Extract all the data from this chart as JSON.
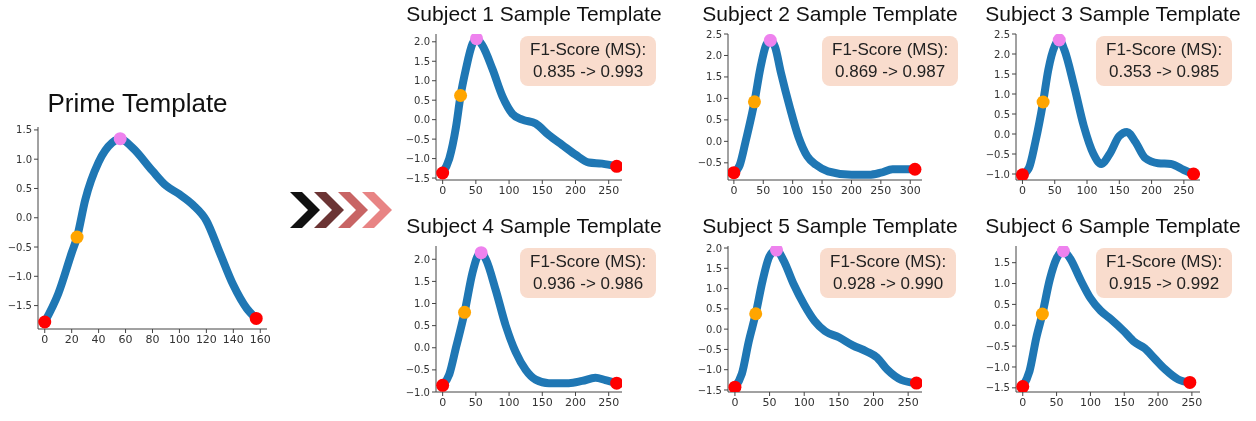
{
  "chart_data": [
    {
      "type": "line",
      "title": "Prime Template",
      "xlim": [
        -5,
        165
      ],
      "xticks": [
        0,
        20,
        40,
        60,
        80,
        100,
        120,
        140,
        160
      ],
      "ylim": [
        -1.9,
        1.55
      ],
      "yticks": [
        {
          "value": -1.5,
          "label": "−1.5"
        },
        {
          "value": -1,
          "label": "−1.0"
        },
        {
          "value": -0.5,
          "label": "−0.5"
        },
        {
          "value": 0,
          "label": "0.0"
        },
        {
          "value": 0.5,
          "label": "0.5"
        },
        {
          "value": 1,
          "label": "1.0"
        },
        {
          "value": 1.5,
          "label": "1.5"
        }
      ],
      "series": [
        {
          "type": "line",
          "color": "#1f77b4",
          "marker": "none",
          "x": [
            0,
            10,
            20,
            24,
            30,
            40,
            50,
            56,
            65,
            80,
            90,
            100,
            110,
            120,
            130,
            140,
            150,
            157
          ],
          "values": [
            -1.78,
            -1.3,
            -0.6,
            -0.33,
            0.3,
            0.95,
            1.28,
            1.35,
            1.2,
            0.8,
            0.55,
            0.4,
            0.22,
            -0.05,
            -0.6,
            -1.15,
            -1.55,
            -1.72
          ]
        },
        {
          "type": "scatter",
          "color": "#ff0000",
          "marker": "circle",
          "x": [
            0,
            157
          ],
          "values": [
            -1.78,
            -1.72
          ]
        },
        {
          "type": "scatter",
          "color": "#ffa500",
          "marker": "circle",
          "x": [
            24
          ],
          "values": [
            -0.33
          ]
        },
        {
          "type": "scatter",
          "color": "#ee82ee",
          "marker": "circle",
          "x": [
            56
          ],
          "values": [
            1.35
          ]
        }
      ]
    },
    {
      "type": "line",
      "title": "Subject 1 Sample Template",
      "annotations": [
        "F1-Score (MS):",
        "0.835 -> 0.993"
      ],
      "xlim": [
        -10,
        270
      ],
      "xticks": [
        0,
        50,
        100,
        150,
        200,
        250
      ],
      "ylim": [
        -1.55,
        2.2
      ],
      "yticks": [
        {
          "value": -1.5,
          "label": "−1.5"
        },
        {
          "value": -1,
          "label": "−1.0"
        },
        {
          "value": -0.5,
          "label": "−0.5"
        },
        {
          "value": 0,
          "label": "0.0"
        },
        {
          "value": 0.5,
          "label": "0.5"
        },
        {
          "value": 1,
          "label": "1.0"
        },
        {
          "value": 1.5,
          "label": "1.5"
        },
        {
          "value": 2,
          "label": "2.0"
        }
      ],
      "series": [
        {
          "type": "line",
          "color": "#1f77b4",
          "marker": "none",
          "x": [
            0,
            10,
            20,
            27,
            35,
            45,
            51,
            60,
            75,
            90,
            105,
            120,
            140,
            160,
            180,
            200,
            220,
            240,
            262
          ],
          "values": [
            -1.37,
            -1.0,
            -0.2,
            0.62,
            1.3,
            1.95,
            2.08,
            1.9,
            1.3,
            0.6,
            0.15,
            0.0,
            -0.1,
            -0.4,
            -0.65,
            -0.9,
            -1.1,
            -1.13,
            -1.2
          ]
        },
        {
          "type": "scatter",
          "color": "#ff0000",
          "marker": "circle",
          "x": [
            0,
            262
          ],
          "values": [
            -1.37,
            -1.2
          ]
        },
        {
          "type": "scatter",
          "color": "#ffa500",
          "marker": "circle",
          "x": [
            27
          ],
          "values": [
            0.62
          ]
        },
        {
          "type": "scatter",
          "color": "#ee82ee",
          "marker": "circle",
          "x": [
            51
          ],
          "values": [
            2.08
          ]
        }
      ]
    },
    {
      "type": "line",
      "title": "Subject 2 Sample Template",
      "annotations": [
        "F1-Score (MS):",
        "0.869 -> 0.987"
      ],
      "xlim": [
        -10,
        320
      ],
      "xticks": [
        0,
        50,
        100,
        150,
        200,
        250,
        300
      ],
      "ylim": [
        -0.9,
        2.5
      ],
      "yticks": [
        {
          "value": -0.5,
          "label": "−0.5"
        },
        {
          "value": 0,
          "label": "0.0"
        },
        {
          "value": 0.5,
          "label": "0.5"
        },
        {
          "value": 1,
          "label": "1.0"
        },
        {
          "value": 1.5,
          "label": "1.5"
        },
        {
          "value": 2,
          "label": "2.0"
        },
        {
          "value": 2.5,
          "label": "2.5"
        }
      ],
      "series": [
        {
          "type": "line",
          "color": "#1f77b4",
          "marker": "none",
          "x": [
            0,
            10,
            20,
            35,
            45,
            55,
            62,
            70,
            80,
            95,
            110,
            125,
            140,
            160,
            200,
            230,
            250,
            270,
            308
          ],
          "values": [
            -0.73,
            -0.55,
            0.0,
            0.92,
            1.7,
            2.25,
            2.35,
            2.2,
            1.6,
            0.8,
            0.1,
            -0.35,
            -0.55,
            -0.7,
            -0.78,
            -0.78,
            -0.73,
            -0.65,
            -0.65
          ]
        },
        {
          "type": "scatter",
          "color": "#ff0000",
          "marker": "circle",
          "x": [
            0,
            308
          ],
          "values": [
            -0.73,
            -0.65
          ]
        },
        {
          "type": "scatter",
          "color": "#ffa500",
          "marker": "circle",
          "x": [
            35
          ],
          "values": [
            0.92
          ]
        },
        {
          "type": "scatter",
          "color": "#ee82ee",
          "marker": "circle",
          "x": [
            62
          ],
          "values": [
            2.35
          ]
        }
      ]
    },
    {
      "type": "line",
      "title": "Subject 3 Sample Template",
      "annotations": [
        "F1-Score (MS):",
        "0.353 -> 0.985"
      ],
      "xlim": [
        -10,
        275
      ],
      "xticks": [
        0,
        50,
        100,
        150,
        200,
        250
      ],
      "ylim": [
        -1.15,
        2.5
      ],
      "yticks": [
        {
          "value": -1,
          "label": "−1.0"
        },
        {
          "value": -0.5,
          "label": "−0.5"
        },
        {
          "value": 0,
          "label": "0.0"
        },
        {
          "value": 0.5,
          "label": "0.5"
        },
        {
          "value": 1,
          "label": "1.0"
        },
        {
          "value": 1.5,
          "label": "1.5"
        },
        {
          "value": 2,
          "label": "2.0"
        },
        {
          "value": 2.5,
          "label": "2.5"
        }
      ],
      "series": [
        {
          "type": "line",
          "color": "#1f77b4",
          "marker": "none",
          "x": [
            0,
            10,
            20,
            32,
            40,
            50,
            57,
            65,
            80,
            95,
            110,
            122,
            135,
            150,
            162,
            175,
            190,
            210,
            230,
            250,
            265
          ],
          "values": [
            -1.02,
            -0.85,
            -0.2,
            0.8,
            1.6,
            2.2,
            2.35,
            2.1,
            1.2,
            0.2,
            -0.5,
            -0.75,
            -0.5,
            -0.05,
            0.05,
            -0.2,
            -0.6,
            -0.73,
            -0.75,
            -0.9,
            -1.0
          ]
        },
        {
          "type": "scatter",
          "color": "#ff0000",
          "marker": "circle",
          "x": [
            0,
            265
          ],
          "values": [
            -1.02,
            -1.0
          ]
        },
        {
          "type": "scatter",
          "color": "#ffa500",
          "marker": "circle",
          "x": [
            32
          ],
          "values": [
            0.8
          ]
        },
        {
          "type": "scatter",
          "color": "#ee82ee",
          "marker": "circle",
          "x": [
            57
          ],
          "values": [
            2.35
          ]
        }
      ]
    },
    {
      "type": "line",
      "title": "Subject 4 Sample Template",
      "annotations": [
        "F1-Score (MS):",
        "0.936 -> 0.986"
      ],
      "xlim": [
        -10,
        270
      ],
      "xticks": [
        0,
        50,
        100,
        150,
        200,
        250
      ],
      "ylim": [
        -1.0,
        2.3
      ],
      "yticks": [
        {
          "value": -1,
          "label": "−1.0"
        },
        {
          "value": -0.5,
          "label": "−0.5"
        },
        {
          "value": 0,
          "label": "0.0"
        },
        {
          "value": 0.5,
          "label": "0.5"
        },
        {
          "value": 1,
          "label": "1.0"
        },
        {
          "value": 1.5,
          "label": "1.5"
        },
        {
          "value": 2,
          "label": "2.0"
        }
      ],
      "series": [
        {
          "type": "line",
          "color": "#1f77b4",
          "marker": "none",
          "x": [
            0,
            10,
            20,
            33,
            45,
            52,
            58,
            65,
            80,
            95,
            110,
            125,
            140,
            160,
            190,
            210,
            230,
            245,
            262
          ],
          "values": [
            -0.85,
            -0.6,
            0.0,
            0.8,
            1.7,
            2.05,
            2.15,
            2.0,
            1.3,
            0.5,
            -0.1,
            -0.5,
            -0.72,
            -0.8,
            -0.8,
            -0.75,
            -0.68,
            -0.73,
            -0.8
          ]
        },
        {
          "type": "scatter",
          "color": "#ff0000",
          "marker": "circle",
          "x": [
            0,
            262
          ],
          "values": [
            -0.85,
            -0.8
          ]
        },
        {
          "type": "scatter",
          "color": "#ffa500",
          "marker": "circle",
          "x": [
            33
          ],
          "values": [
            0.8
          ]
        },
        {
          "type": "scatter",
          "color": "#ee82ee",
          "marker": "circle",
          "x": [
            58
          ],
          "values": [
            2.15
          ]
        }
      ]
    },
    {
      "type": "line",
      "title": "Subject 5 Sample Template",
      "annotations": [
        "F1-Score (MS):",
        "0.928 -> 0.990"
      ],
      "xlim": [
        -10,
        270
      ],
      "xticks": [
        0,
        50,
        100,
        150,
        200,
        250
      ],
      "ylim": [
        -1.55,
        2.05
      ],
      "yticks": [
        {
          "value": -1.5,
          "label": "−1.5"
        },
        {
          "value": -1,
          "label": "−1.0"
        },
        {
          "value": -0.5,
          "label": "−0.5"
        },
        {
          "value": 0,
          "label": "0.0"
        },
        {
          "value": 0.5,
          "label": "0.5"
        },
        {
          "value": 1,
          "label": "1.0"
        },
        {
          "value": 1.5,
          "label": "1.5"
        },
        {
          "value": 2,
          "label": "2.0"
        }
      ],
      "series": [
        {
          "type": "line",
          "color": "#1f77b4",
          "marker": "none",
          "x": [
            0,
            10,
            20,
            30,
            40,
            50,
            60,
            70,
            85,
            100,
            115,
            130,
            150,
            170,
            190,
            205,
            220,
            240,
            262
          ],
          "values": [
            -1.43,
            -1.1,
            -0.3,
            0.38,
            1.2,
            1.8,
            1.95,
            1.7,
            1.1,
            0.6,
            0.2,
            -0.05,
            -0.2,
            -0.4,
            -0.55,
            -0.7,
            -1.0,
            -1.25,
            -1.33
          ]
        },
        {
          "type": "scatter",
          "color": "#ff0000",
          "marker": "circle",
          "x": [
            0,
            262
          ],
          "values": [
            -1.43,
            -1.33
          ]
        },
        {
          "type": "scatter",
          "color": "#ffa500",
          "marker": "circle",
          "x": [
            30
          ],
          "values": [
            0.38
          ]
        },
        {
          "type": "scatter",
          "color": "#ee82ee",
          "marker": "circle",
          "x": [
            60
          ],
          "values": [
            1.95
          ]
        }
      ]
    },
    {
      "type": "line",
      "title": "Subject 6 Sample Template",
      "annotations": [
        "F1-Score (MS):",
        "0.915 -> 0.992"
      ],
      "xlim": [
        -10,
        262
      ],
      "xticks": [
        0,
        50,
        100,
        150,
        200,
        250
      ],
      "ylim": [
        -1.6,
        1.9
      ],
      "yticks": [
        {
          "value": -1.5,
          "label": "−1.5"
        },
        {
          "value": -1,
          "label": "−1.0"
        },
        {
          "value": -0.5,
          "label": "−0.5"
        },
        {
          "value": 0,
          "label": "0.0"
        },
        {
          "value": 0.5,
          "label": "0.5"
        },
        {
          "value": 1,
          "label": "1.0"
        },
        {
          "value": 1.5,
          "label": "1.5"
        }
      ],
      "series": [
        {
          "type": "line",
          "color": "#1f77b4",
          "marker": "none",
          "x": [
            0,
            10,
            20,
            29,
            40,
            50,
            60,
            70,
            85,
            100,
            115,
            130,
            150,
            165,
            180,
            195,
            210,
            230,
            247
          ],
          "values": [
            -1.47,
            -1.1,
            -0.3,
            0.27,
            1.1,
            1.6,
            1.78,
            1.6,
            1.1,
            0.65,
            0.35,
            0.15,
            -0.15,
            -0.4,
            -0.55,
            -0.8,
            -1.05,
            -1.3,
            -1.37
          ]
        },
        {
          "type": "scatter",
          "color": "#ff0000",
          "marker": "circle",
          "x": [
            0,
            247
          ],
          "values": [
            -1.47,
            -1.37
          ]
        },
        {
          "type": "scatter",
          "color": "#ffa500",
          "marker": "circle",
          "x": [
            29
          ],
          "values": [
            0.27
          ]
        },
        {
          "type": "scatter",
          "color": "#ee82ee",
          "marker": "circle",
          "x": [
            60
          ],
          "values": [
            1.78
          ]
        }
      ]
    }
  ]
}
